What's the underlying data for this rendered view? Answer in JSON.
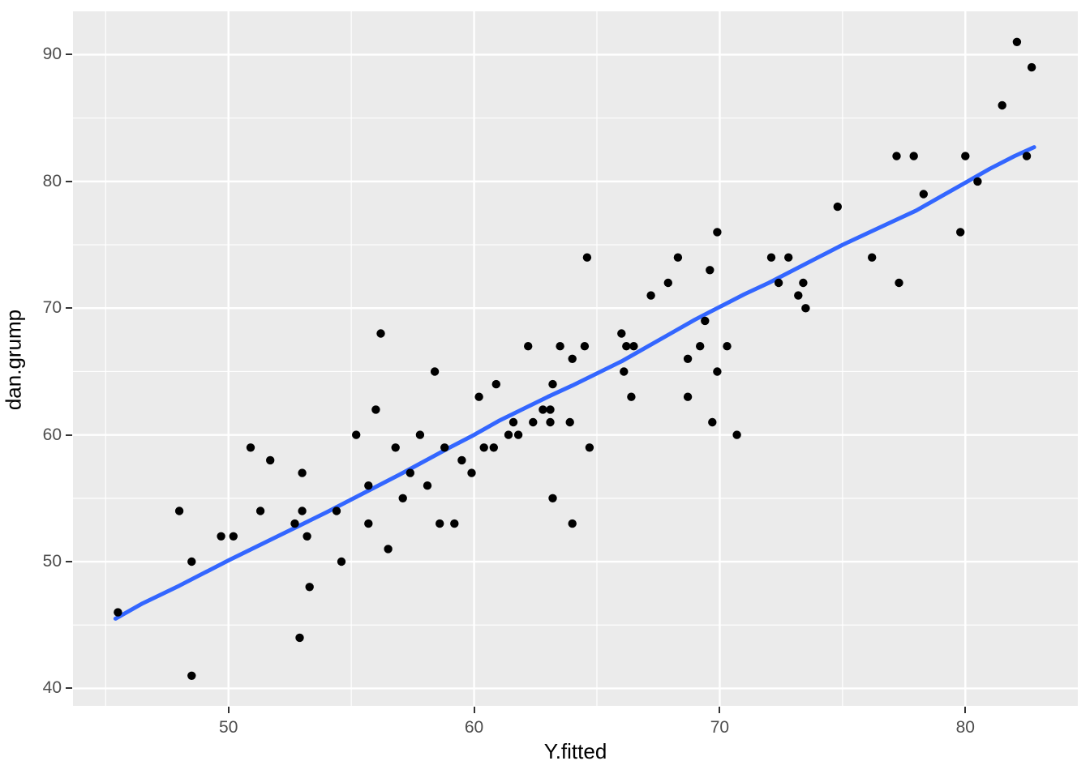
{
  "figure": {
    "background": "#FFFFFF",
    "panel_background": "#EBEBEB"
  },
  "chart_data": {
    "type": "scatter",
    "title": "",
    "xlabel": "Y.fitted",
    "ylabel": "dan.grump",
    "xlim": [
      43.67,
      84.58
    ],
    "ylim": [
      38.62,
      93.42
    ],
    "x_major_ticks": [
      50,
      60,
      70,
      80
    ],
    "x_minor_ticks": [
      45,
      55,
      65,
      75
    ],
    "y_major_ticks": [
      40,
      50,
      60,
      70,
      80,
      90
    ],
    "y_minor_ticks": [
      45,
      55,
      65,
      75,
      85
    ],
    "grid": "major-and-minor",
    "legend_position": "none",
    "grid_color": "#FFFFFF",
    "point_color": "#000000",
    "point_radius": 5.2,
    "smooth_line_color": "#3366FF",
    "smooth_line_width": 5,
    "tick_label_color": "#4D4D4D",
    "axis_title_color": "#000000",
    "points": [
      [
        45.5,
        46
      ],
      [
        48.0,
        54
      ],
      [
        48.5,
        50
      ],
      [
        48.5,
        41
      ],
      [
        49.7,
        52
      ],
      [
        50.2,
        52
      ],
      [
        50.9,
        59
      ],
      [
        51.3,
        54
      ],
      [
        51.7,
        58
      ],
      [
        52.7,
        53
      ],
      [
        52.9,
        44
      ],
      [
        53.0,
        54
      ],
      [
        53.0,
        57
      ],
      [
        53.2,
        52
      ],
      [
        53.3,
        48
      ],
      [
        54.4,
        54
      ],
      [
        54.6,
        50
      ],
      [
        55.2,
        60
      ],
      [
        55.7,
        56
      ],
      [
        55.7,
        53
      ],
      [
        56.0,
        62
      ],
      [
        56.2,
        68
      ],
      [
        56.5,
        51
      ],
      [
        56.8,
        59
      ],
      [
        57.1,
        55
      ],
      [
        57.4,
        57
      ],
      [
        57.8,
        60
      ],
      [
        58.1,
        56
      ],
      [
        58.4,
        65
      ],
      [
        58.6,
        53
      ],
      [
        58.8,
        59
      ],
      [
        59.2,
        53
      ],
      [
        59.5,
        58
      ],
      [
        59.9,
        57
      ],
      [
        60.2,
        63
      ],
      [
        60.4,
        59
      ],
      [
        60.8,
        59
      ],
      [
        60.9,
        64
      ],
      [
        61.4,
        60
      ],
      [
        61.6,
        61
      ],
      [
        61.8,
        60
      ],
      [
        62.2,
        67
      ],
      [
        62.4,
        61
      ],
      [
        62.8,
        62
      ],
      [
        63.1,
        61
      ],
      [
        63.1,
        62
      ],
      [
        63.2,
        55
      ],
      [
        63.2,
        64
      ],
      [
        63.5,
        67
      ],
      [
        63.9,
        61
      ],
      [
        64.0,
        53
      ],
      [
        64.0,
        66
      ],
      [
        64.5,
        67
      ],
      [
        64.6,
        74
      ],
      [
        64.7,
        59
      ],
      [
        66.0,
        68
      ],
      [
        66.1,
        65
      ],
      [
        66.2,
        67
      ],
      [
        66.4,
        63
      ],
      [
        66.5,
        67
      ],
      [
        67.2,
        71
      ],
      [
        67.9,
        72
      ],
      [
        68.3,
        74
      ],
      [
        68.7,
        63
      ],
      [
        68.7,
        66
      ],
      [
        69.2,
        67
      ],
      [
        69.4,
        69
      ],
      [
        69.6,
        73
      ],
      [
        69.7,
        61
      ],
      [
        69.9,
        65
      ],
      [
        69.9,
        76
      ],
      [
        70.3,
        67
      ],
      [
        70.7,
        60
      ],
      [
        72.1,
        74
      ],
      [
        72.4,
        72
      ],
      [
        72.8,
        74
      ],
      [
        73.2,
        71
      ],
      [
        73.4,
        72
      ],
      [
        73.5,
        70
      ],
      [
        74.8,
        78
      ],
      [
        76.2,
        74
      ],
      [
        77.2,
        82
      ],
      [
        77.3,
        72
      ],
      [
        77.9,
        82
      ],
      [
        78.3,
        79
      ],
      [
        79.8,
        76
      ],
      [
        80.0,
        82
      ],
      [
        80.5,
        80
      ],
      [
        81.5,
        86
      ],
      [
        82.1,
        91
      ],
      [
        82.5,
        82
      ],
      [
        82.7,
        89
      ]
    ],
    "smooth_line": [
      [
        45.4,
        45.5
      ],
      [
        46.5,
        46.7
      ],
      [
        48,
        48.1
      ],
      [
        50,
        50.1
      ],
      [
        52,
        52.0
      ],
      [
        54,
        53.9
      ],
      [
        55,
        54.9
      ],
      [
        57,
        56.9
      ],
      [
        59,
        59.0
      ],
      [
        60,
        60.0
      ],
      [
        61,
        61.1
      ],
      [
        63,
        63.0
      ],
      [
        64,
        63.9
      ],
      [
        66,
        65.8
      ],
      [
        67,
        66.9
      ],
      [
        68,
        68.0
      ],
      [
        69,
        69.1
      ],
      [
        70,
        70.1
      ],
      [
        71,
        71.1
      ],
      [
        72,
        72.0
      ],
      [
        74,
        74.0
      ],
      [
        75,
        75.0
      ],
      [
        76,
        75.9
      ],
      [
        77,
        76.8
      ],
      [
        78,
        77.7
      ],
      [
        79,
        78.8
      ],
      [
        80,
        79.9
      ],
      [
        81,
        81.0
      ],
      [
        82,
        82.0
      ],
      [
        82.8,
        82.7
      ]
    ]
  }
}
